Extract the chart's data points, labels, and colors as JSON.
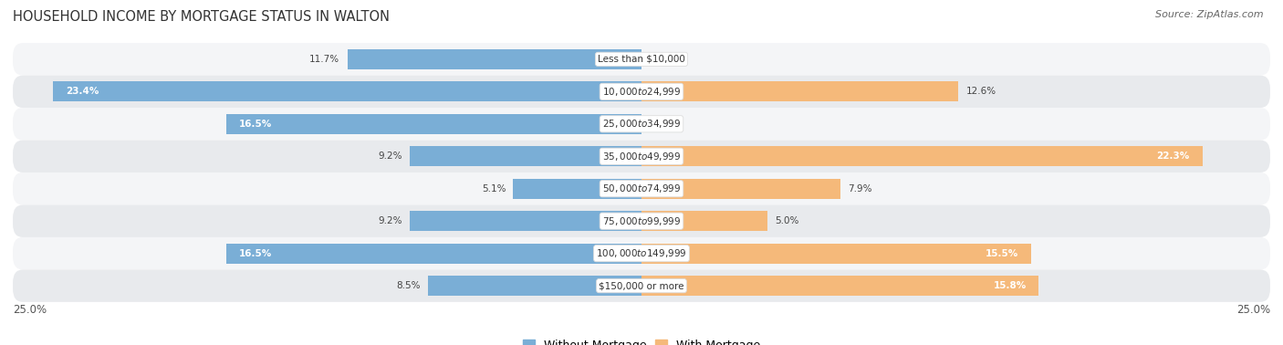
{
  "title": "HOUSEHOLD INCOME BY MORTGAGE STATUS IN WALTON",
  "source": "Source: ZipAtlas.com",
  "categories": [
    "Less than $10,000",
    "$10,000 to $24,999",
    "$25,000 to $34,999",
    "$35,000 to $49,999",
    "$50,000 to $74,999",
    "$75,000 to $99,999",
    "$100,000 to $149,999",
    "$150,000 or more"
  ],
  "without_mortgage": [
    11.7,
    23.4,
    16.5,
    9.2,
    5.1,
    9.2,
    16.5,
    8.5
  ],
  "with_mortgage": [
    0.0,
    12.6,
    0.0,
    22.3,
    7.9,
    5.0,
    15.5,
    15.8
  ],
  "without_mortgage_color": "#7aaed6",
  "with_mortgage_color": "#f5b97a",
  "xlim": 25.0,
  "bar_height": 0.62,
  "row_bg_gray": "#e8eaed",
  "row_bg_white": "#f4f5f7",
  "title_fontsize": 10.5,
  "source_fontsize": 8,
  "legend_fontsize": 9,
  "axis_label_fontsize": 8.5,
  "bar_label_fontsize": 7.5,
  "category_fontsize": 7.5,
  "inside_label_threshold": 14.0
}
